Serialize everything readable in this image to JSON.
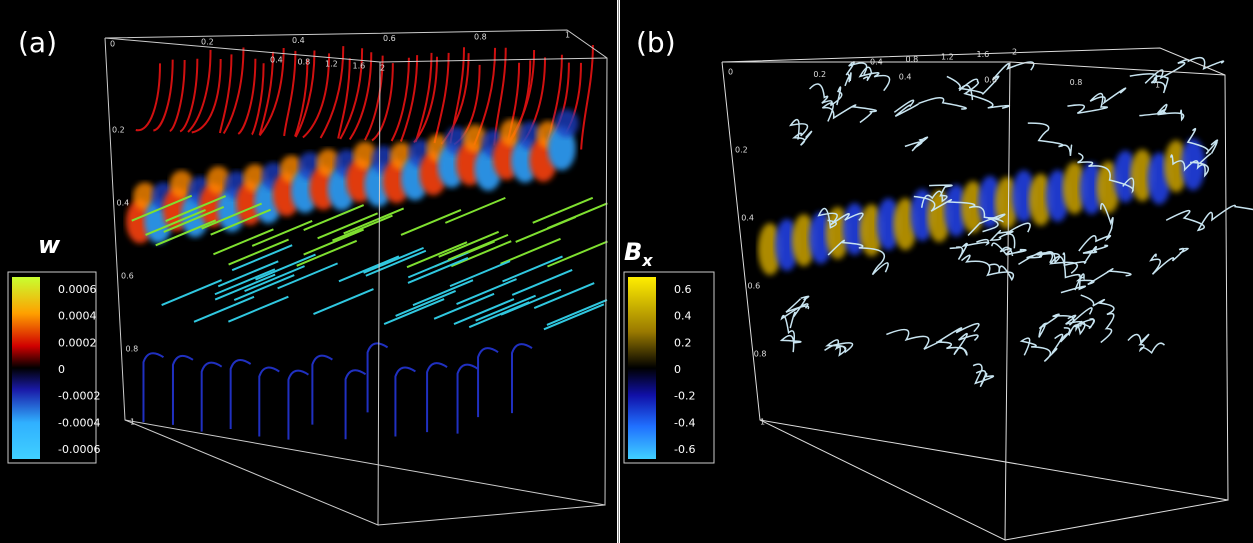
{
  "panels": [
    {
      "label": "(a)",
      "colorbar": {
        "title": "w",
        "title_sub": null,
        "ticks": [
          0.0006,
          0.0004,
          0.0002,
          0,
          -0.0002,
          -0.0004,
          -0.0006
        ]
      },
      "axes": {
        "x": [
          "0",
          "0.2",
          "0.4",
          "0.6",
          "0.8",
          "1"
        ],
        "y": [
          "0.4",
          "0.8",
          "1.2",
          "1.6",
          "2"
        ],
        "z": [
          "0.2",
          "0.4",
          "0.6",
          "0.8",
          "1"
        ]
      }
    },
    {
      "label": "(b)",
      "colorbar": {
        "title": "B",
        "title_sub": "x",
        "ticks": [
          0.6,
          0.4,
          0.2,
          0,
          -0.2,
          -0.4,
          -0.6
        ]
      },
      "axes": {
        "x": [
          "0",
          "0.2",
          "0.4",
          "0.6",
          "0.8",
          "1"
        ],
        "y": [
          "0.4",
          "0.8",
          "1.2",
          "1.6",
          "2"
        ],
        "z": [
          "0.2",
          "0.4",
          "0.6",
          "0.8",
          "1"
        ]
      }
    }
  ]
}
